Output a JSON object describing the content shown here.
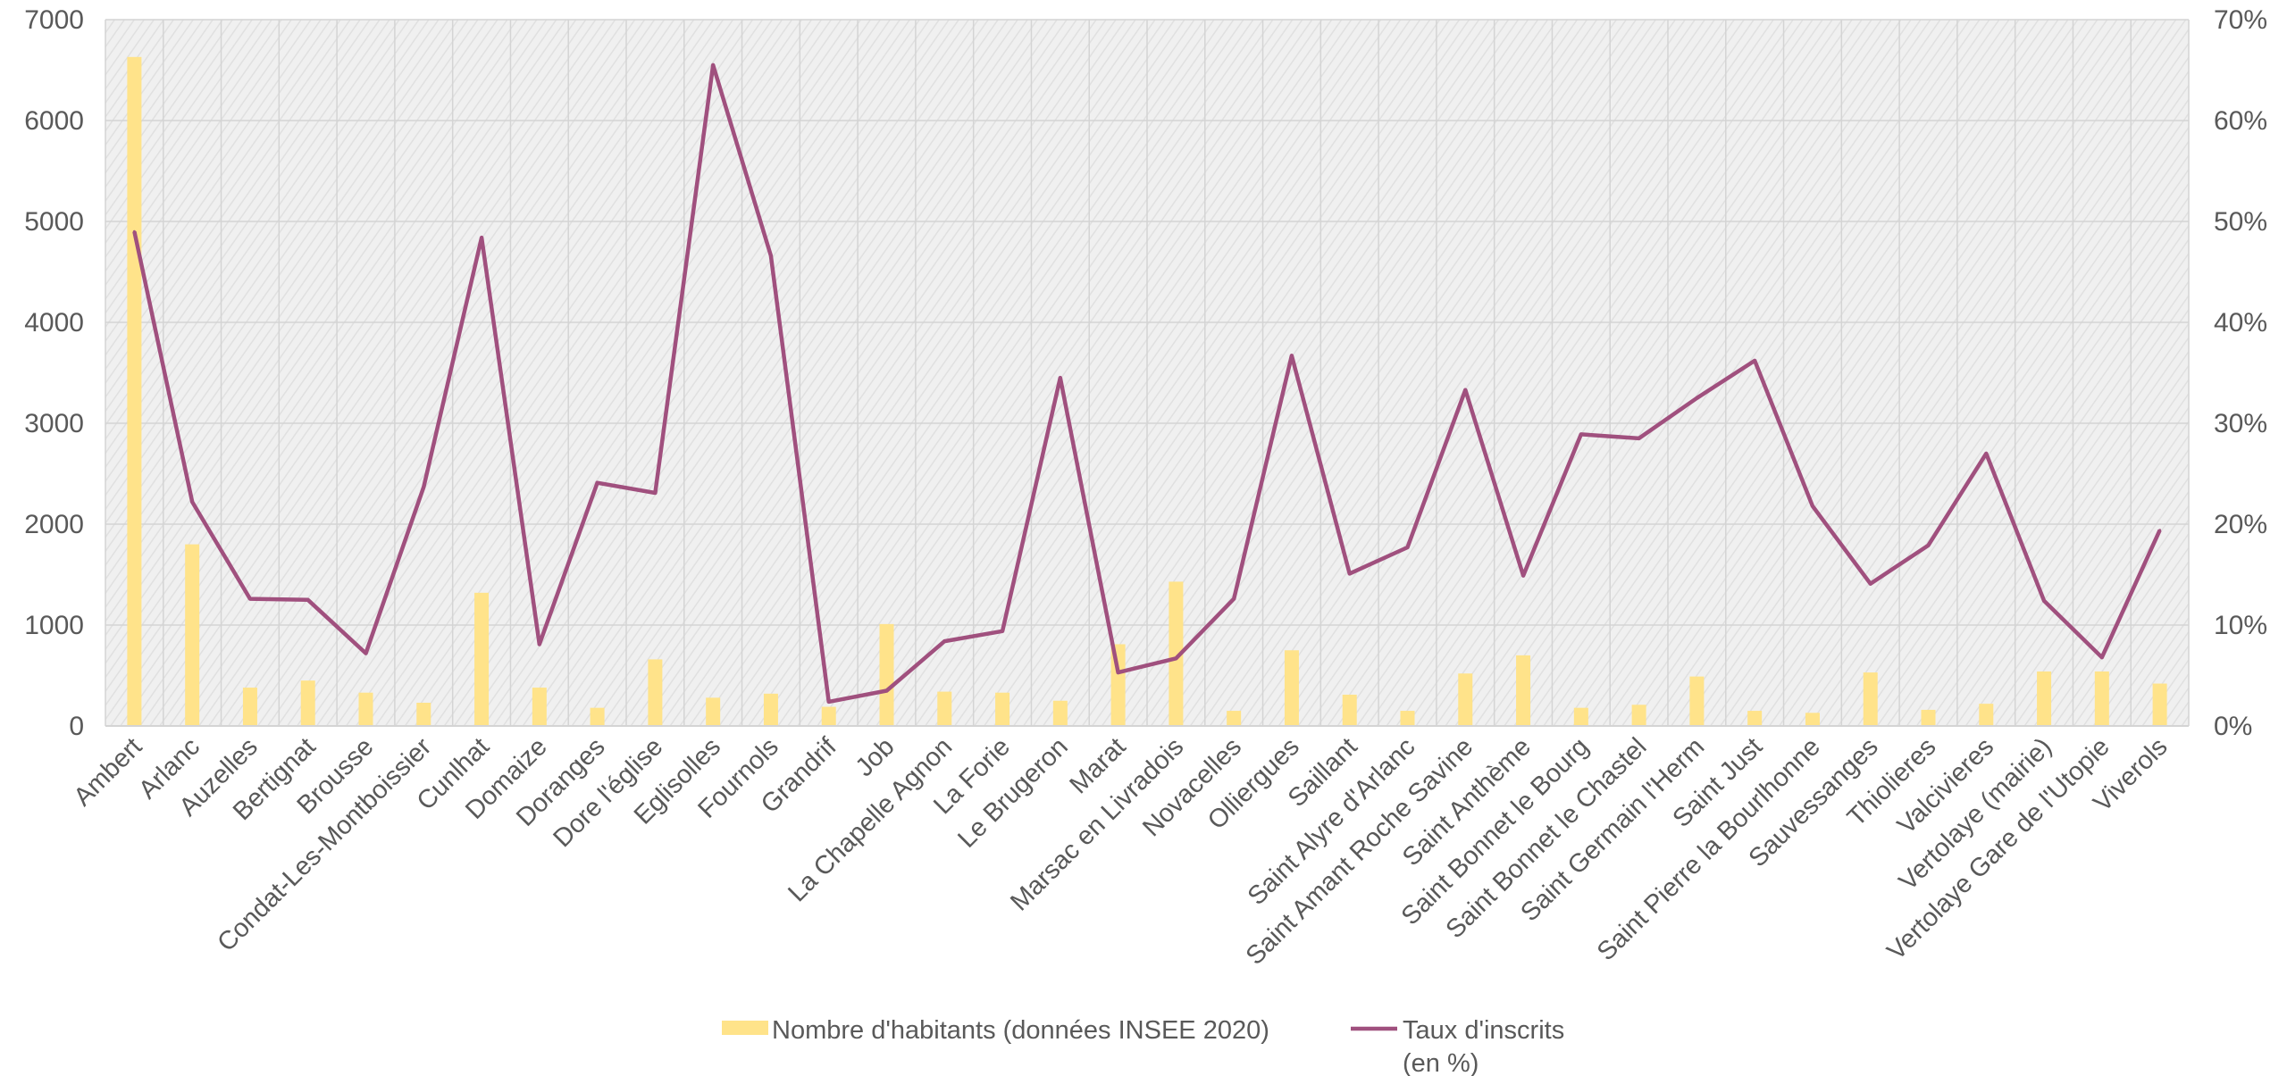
{
  "chart_data": {
    "type": "bar",
    "title": "",
    "categories": [
      "Ambert",
      "Arlanc",
      "Auzelles",
      "Bertignat",
      "Brousse",
      "Condat-Les-Montboissier",
      "Cunlhat",
      "Domaize",
      "Doranges",
      "Dore l'église",
      "Eglisolles",
      "Fournols",
      "Grandrif",
      "Job",
      "La Chapelle Agnon",
      "La Forie",
      "Le Brugeron",
      "Marat",
      "Marsac en Livradois",
      "Novacelles",
      "Olliergues",
      "Saillant",
      "Saint Alyre d'Arlanc",
      "Saint Amant Roche Savine",
      "Saint Anthème",
      "Saint Bonnet le Bourg",
      "Saint Bonnet le Chastel",
      "Saint Germain l'Herm",
      "Saint Just",
      "Saint Pierre la Bourlhonne",
      "Sauvessanges",
      "Thiolieres",
      "Valcivieres",
      "Vertolaye (mairie)",
      "Vertolaye Gare de l'Utopie",
      "Viverols"
    ],
    "series": [
      {
        "name": "Nombre d'habitants (données INSEE 2020)",
        "type": "bar",
        "axis": "left",
        "color": "#ffe38a",
        "values": [
          6630,
          1800,
          380,
          450,
          330,
          230,
          1320,
          380,
          180,
          660,
          280,
          320,
          190,
          1010,
          340,
          330,
          250,
          810,
          1430,
          150,
          750,
          310,
          150,
          520,
          700,
          180,
          210,
          490,
          150,
          130,
          530,
          160,
          220,
          540,
          540,
          420
        ]
      },
      {
        "name": "Taux d'inscrits\n(en %)",
        "type": "line",
        "axis": "right",
        "color": "#a0507e",
        "values": [
          49,
          22.2,
          12.6,
          12.5,
          7.2,
          23.7,
          48.4,
          8.1,
          24.1,
          23.1,
          65.5,
          46.6,
          2.4,
          3.5,
          8.4,
          9.4,
          34.5,
          5.3,
          6.7,
          12.6,
          36.7,
          15.1,
          17.7,
          33.3,
          14.9,
          28.9,
          28.5,
          32.5,
          36.2,
          21.8,
          14.1,
          17.9,
          27,
          12.4,
          6.8,
          19.4
        ]
      }
    ],
    "y_left": {
      "min": 0,
      "max": 7000,
      "step": 1000,
      "ticks": [
        "0",
        "1000",
        "2000",
        "3000",
        "4000",
        "5000",
        "6000",
        "7000"
      ]
    },
    "y_right": {
      "min": 0,
      "max": 70,
      "step": 10,
      "ticks": [
        "0%",
        "10%",
        "20%",
        "30%",
        "40%",
        "50%",
        "60%",
        "70%"
      ]
    },
    "grid": true,
    "plot_background": "hatched light gray",
    "legend_position": "bottom-center"
  }
}
